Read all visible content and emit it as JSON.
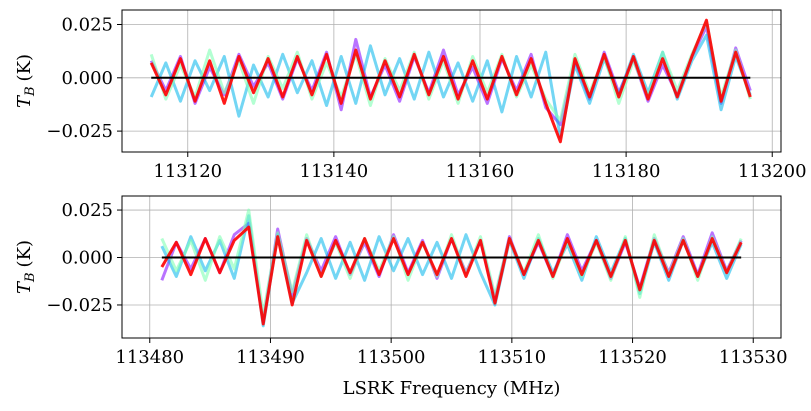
{
  "chart_data": [
    {
      "type": "line",
      "x": [
        113115,
        113117,
        113119,
        113121,
        113123,
        113125,
        113127,
        113129,
        113131,
        113133,
        113135,
        113137,
        113139,
        113141,
        113143,
        113145,
        113147,
        113149,
        113151,
        113153,
        113155,
        113157,
        113159,
        113161,
        113163,
        113165,
        113167,
        113169,
        113171,
        113173,
        113175,
        113177,
        113179,
        113181,
        113183,
        113185,
        113187,
        113189,
        113191,
        113193,
        113195,
        113197
      ],
      "series": [
        {
          "color": "#8000ff",
          "alpha": 0.55,
          "values": [
            0.008,
            -0.006,
            0.01,
            -0.012,
            0.005,
            -0.008,
            0.011,
            -0.004,
            0.007,
            -0.01,
            0.009,
            -0.006,
            0.012,
            -0.015,
            0.018,
            -0.009,
            0.006,
            -0.011,
            0.01,
            -0.007,
            0.013,
            -0.008,
            0.005,
            -0.012,
            0.009,
            -0.006,
            0.011,
            -0.014,
            -0.022,
            0.008,
            -0.01,
            0.012,
            -0.007,
            0.009,
            -0.011,
            0.006,
            -0.008,
            0.01,
            0.024,
            -0.012,
            0.014,
            -0.006
          ]
        },
        {
          "color": "#00b5eb",
          "alpha": 0.55,
          "values": [
            -0.009,
            0.007,
            -0.011,
            0.008,
            -0.006,
            0.01,
            -0.018,
            0.006,
            -0.009,
            0.011,
            -0.007,
            0.008,
            -0.013,
            0.01,
            -0.012,
            0.015,
            -0.008,
            0.009,
            -0.01,
            0.012,
            -0.009,
            0.007,
            -0.011,
            0.008,
            -0.016,
            0.01,
            -0.009,
            0.012,
            -0.028,
            0.006,
            -0.012,
            0.009,
            -0.008,
            0.011,
            -0.007,
            0.012,
            -0.01,
            0.008,
            0.02,
            -0.015,
            0.01,
            -0.008
          ]
        },
        {
          "color": "#80ffb4",
          "alpha": 0.6,
          "values": [
            0.011,
            -0.01,
            0.006,
            -0.009,
            0.013,
            -0.007,
            0.008,
            -0.012,
            0.01,
            -0.005,
            0.012,
            -0.01,
            0.007,
            -0.009,
            0.011,
            -0.013,
            0.009,
            -0.006,
            0.012,
            -0.01,
            0.008,
            -0.012,
            0.01,
            -0.007,
            0.011,
            -0.009,
            0.006,
            -0.01,
            -0.02,
            0.011,
            -0.007,
            0.01,
            -0.012,
            0.008,
            -0.009,
            0.012,
            -0.006,
            0.011,
            0.026,
            -0.009,
            0.013,
            -0.01
          ]
        },
        {
          "color": "#ff0000",
          "alpha": 0.9,
          "values": [
            0.007,
            -0.008,
            0.009,
            -0.011,
            0.008,
            -0.012,
            0.01,
            -0.007,
            0.009,
            -0.009,
            0.01,
            -0.008,
            0.011,
            -0.012,
            0.013,
            -0.01,
            0.008,
            -0.009,
            0.011,
            -0.008,
            0.01,
            -0.01,
            0.008,
            -0.01,
            0.01,
            -0.008,
            0.009,
            -0.012,
            -0.03,
            0.009,
            -0.009,
            0.011,
            -0.009,
            0.01,
            -0.01,
            0.009,
            -0.009,
            0.01,
            0.027,
            -0.011,
            0.012,
            -0.009
          ]
        }
      ],
      "reference_line": {
        "value": 0,
        "color": "#000000"
      },
      "ylabel": {
        "symbol": "T",
        "subscript": "B",
        "unit": "(K)"
      },
      "xlim": [
        113111,
        113201.2
      ],
      "ylim": [
        -0.0348,
        0.0318
      ],
      "xticks": [
        113120,
        113140,
        113160,
        113180,
        113200
      ],
      "yticks": [
        {
          "value": -0.025,
          "label": "−0.025"
        },
        {
          "value": 0,
          "label": "0.000"
        },
        {
          "value": 0.025,
          "label": "0.025"
        }
      ],
      "grid": true
    },
    {
      "type": "line",
      "x": [
        113481,
        113482.2,
        113483.4,
        113484.6,
        113485.8,
        113487,
        113488.2,
        113489.4,
        113490.6,
        113491.8,
        113493,
        113494.2,
        113495.4,
        113496.6,
        113497.8,
        113499,
        113500.2,
        113501.4,
        113502.6,
        113503.8,
        113505,
        113506.2,
        113507.4,
        113508.6,
        113509.8,
        113511,
        113512.2,
        113513.4,
        113514.6,
        113515.8,
        113517,
        113518.2,
        113519.4,
        113520.6,
        113521.8,
        113523,
        113524.2,
        113525.4,
        113526.6,
        113527.8,
        113529
      ],
      "series": [
        {
          "color": "#8000ff",
          "alpha": 0.55,
          "values": [
            -0.012,
            0.008,
            -0.006,
            0.01,
            -0.008,
            0.012,
            0.018,
            -0.034,
            0.015,
            -0.02,
            0.01,
            -0.007,
            0.011,
            -0.009,
            0.008,
            -0.01,
            0.012,
            -0.008,
            0.009,
            -0.011,
            0.01,
            -0.008,
            0.009,
            -0.022,
            0.011,
            -0.009,
            0.008,
            -0.01,
            0.012,
            -0.007,
            0.009,
            -0.011,
            0.008,
            -0.016,
            0.01,
            -0.008,
            0.011,
            -0.009,
            0.013,
            -0.007,
            0.009
          ]
        },
        {
          "color": "#00b5eb",
          "alpha": 0.55,
          "values": [
            0.006,
            -0.01,
            0.011,
            -0.007,
            0.009,
            -0.011,
            0.022,
            -0.036,
            0.012,
            -0.024,
            -0.008,
            0.01,
            -0.011,
            0.008,
            -0.012,
            0.011,
            -0.007,
            0.01,
            -0.009,
            0.008,
            -0.011,
            0.012,
            -0.008,
            -0.025,
            0.009,
            -0.011,
            0.01,
            -0.008,
            0.007,
            -0.012,
            0.011,
            -0.008,
            0.01,
            -0.019,
            0.008,
            -0.012,
            0.009,
            -0.01,
            0.008,
            -0.011,
            0.007
          ]
        },
        {
          "color": "#80ffb4",
          "alpha": 0.6,
          "values": [
            0.01,
            -0.007,
            0.009,
            -0.012,
            0.011,
            -0.006,
            0.025,
            -0.03,
            0.013,
            -0.018,
            0.012,
            -0.01,
            0.008,
            -0.011,
            0.01,
            -0.007,
            0.011,
            -0.012,
            0.008,
            -0.01,
            0.012,
            -0.009,
            0.011,
            -0.02,
            0.01,
            -0.008,
            0.012,
            -0.011,
            0.009,
            -0.01,
            0.008,
            -0.012,
            0.011,
            -0.021,
            0.012,
            -0.009,
            0.01,
            -0.012,
            0.011,
            -0.008,
            0.01
          ]
        },
        {
          "color": "#ff0000",
          "alpha": 0.9,
          "values": [
            -0.005,
            0.008,
            -0.009,
            0.01,
            -0.008,
            0.009,
            0.016,
            -0.035,
            0.011,
            -0.025,
            0.009,
            -0.01,
            0.009,
            -0.008,
            0.01,
            -0.009,
            0.01,
            -0.009,
            0.008,
            -0.009,
            0.01,
            -0.01,
            0.009,
            -0.024,
            0.01,
            -0.009,
            0.009,
            -0.01,
            0.01,
            -0.009,
            0.009,
            -0.01,
            0.009,
            -0.017,
            0.009,
            -0.01,
            0.009,
            -0.01,
            0.01,
            -0.008,
            0.008
          ]
        }
      ],
      "reference_line": {
        "value": 0,
        "color": "#000000"
      },
      "ylabel": {
        "symbol": "T",
        "subscript": "B",
        "unit": "(K)"
      },
      "xlabel": "LSRK Frequency (MHz)",
      "xlim": [
        113477.7,
        113532.3
      ],
      "ylim": [
        -0.0424,
        0.0324
      ],
      "xticks": [
        113480,
        113490,
        113500,
        113510,
        113520,
        113530
      ],
      "yticks": [
        {
          "value": -0.025,
          "label": "−0.025"
        },
        {
          "value": 0,
          "label": "0.000"
        },
        {
          "value": 0.025,
          "label": "0.025"
        }
      ],
      "grid": true
    }
  ]
}
